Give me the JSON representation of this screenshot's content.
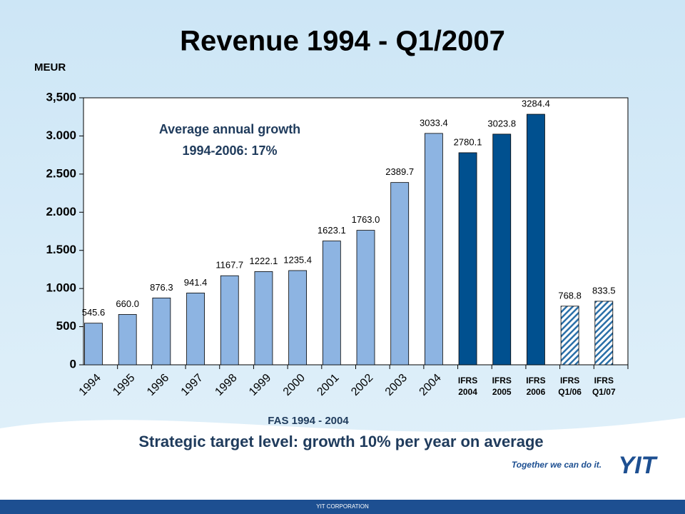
{
  "chart_data": {
    "type": "bar",
    "title": "Revenue 1994 - Q1/2007",
    "y_axis_label": "MEUR",
    "annotation": [
      "Average annual growth",
      "1994-2006: 17%"
    ],
    "x_group_label": "FAS 1994 - 2004",
    "subtitle": "Strategic target level: growth 10% per year on average",
    "categories": [
      "1994",
      "1995",
      "1996",
      "1997",
      "1998",
      "1999",
      "2000",
      "2001",
      "2002",
      "2003",
      "2004",
      "IFRS 2004",
      "IFRS 2005",
      "IFRS 2006",
      "IFRS Q1/06",
      "IFRS Q1/07"
    ],
    "values": [
      545.6,
      660.0,
      876.3,
      941.4,
      1167.7,
      1222.1,
      1235.4,
      1623.1,
      1763.0,
      2389.7,
      3033.4,
      2780.1,
      3023.8,
      3284.4,
      768.8,
      833.5
    ],
    "value_labels": [
      "545.6",
      "660.0",
      "876.3",
      "941.4",
      "1167.7",
      "1222.1",
      "1235.4",
      "1623.1",
      "1763.0",
      "2389.7",
      "3033.4",
      "2780.1",
      "3023.8",
      "3284.4",
      "768.8",
      "833.5"
    ],
    "colors": [
      "#8db4e2",
      "#8db4e2",
      "#8db4e2",
      "#8db4e2",
      "#8db4e2",
      "#8db4e2",
      "#8db4e2",
      "#8db4e2",
      "#8db4e2",
      "#8db4e2",
      "#8db4e2",
      "#00508f",
      "#00508f",
      "#00508f",
      "#2a6fa8",
      "#2a6fa8"
    ],
    "hatched": [
      false,
      false,
      false,
      false,
      false,
      false,
      false,
      false,
      false,
      false,
      false,
      false,
      false,
      false,
      true,
      true
    ],
    "ylim": [
      0,
      3500
    ],
    "yticks": [
      0,
      500,
      {
        "value": 1000,
        "label": "1.000"
      },
      {
        "value": 1500,
        "label": "1.500"
      },
      {
        "value": 2000,
        "label": "2.000"
      },
      {
        "value": 2500,
        "label": "2.500"
      },
      {
        "value": 3000,
        "label": "3.000"
      },
      {
        "value": 3500,
        "label": "3,500"
      }
    ],
    "grid": false
  },
  "branding": {
    "slogan": "Together we can do it.",
    "logo": "YIT",
    "footer": "YIT CORPORATION"
  }
}
